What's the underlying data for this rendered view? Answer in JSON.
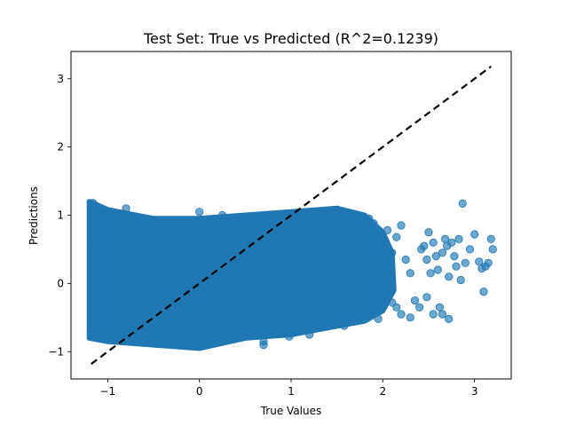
{
  "chart_data": {
    "type": "scatter",
    "title": "Test Set: True vs Predicted (R^2=0.1239)",
    "xlabel": "True Values",
    "ylabel": "Predictions",
    "xlim": [
      -1.4,
      3.4
    ],
    "ylim": [
      -1.4,
      3.4
    ],
    "xticks": [
      -1,
      0,
      1,
      2,
      3
    ],
    "yticks": [
      -1,
      0,
      1,
      2,
      3
    ],
    "xtick_labels": [
      "−1",
      "0",
      "1",
      "2",
      "3"
    ],
    "ytick_labels": [
      "−1",
      "0",
      "1",
      "2",
      "3"
    ],
    "grid": false,
    "legend": null,
    "colors": {
      "points": "#1f77b4",
      "reference_line": "#000000"
    },
    "reference_line": {
      "style": "dashed",
      "x": [
        -1.18,
        3.18
      ],
      "y": [
        -1.18,
        3.18
      ]
    },
    "series": [
      {
        "name": "",
        "description": "dense cloud of test predictions",
        "points": [
          [
            -1.17,
            0.55
          ],
          [
            -1.16,
            1.18
          ],
          [
            -1.1,
            -0.1
          ],
          [
            -1.05,
            1.05
          ],
          [
            -0.98,
            0.25
          ],
          [
            -0.9,
            -0.55
          ],
          [
            -0.8,
            1.1
          ],
          [
            -0.75,
            0.8
          ],
          [
            -0.7,
            -0.85
          ],
          [
            -0.6,
            0.35
          ],
          [
            -0.5,
            0.92
          ],
          [
            -0.45,
            -0.75
          ],
          [
            -0.3,
            0.1
          ],
          [
            -0.2,
            -0.8
          ],
          [
            -0.1,
            0.55
          ],
          [
            0.0,
            1.05
          ],
          [
            0.05,
            -0.9
          ],
          [
            0.1,
            0.78
          ],
          [
            0.2,
            -0.15
          ],
          [
            0.25,
            1.0
          ],
          [
            0.3,
            -0.7
          ],
          [
            0.4,
            0.3
          ],
          [
            0.5,
            0.95
          ],
          [
            0.6,
            -0.55
          ],
          [
            0.7,
            -0.85
          ],
          [
            0.8,
            0.45
          ],
          [
            0.9,
            -0.2
          ],
          [
            1.0,
            1.02
          ],
          [
            1.1,
            0.05
          ],
          [
            1.2,
            -0.75
          ],
          [
            1.3,
            0.9
          ],
          [
            1.35,
            -0.3
          ],
          [
            1.5,
            1.08
          ],
          [
            1.6,
            -0.55
          ],
          [
            1.7,
            0.6
          ],
          [
            1.75,
            -0.1
          ],
          [
            1.85,
            0.95
          ],
          [
            1.9,
            -0.4
          ],
          [
            2.0,
            0.6
          ],
          [
            2.05,
            -0.15
          ],
          [
            2.1,
            0.45
          ],
          [
            2.15,
            -0.35
          ],
          [
            2.2,
            0.85
          ],
          [
            2.25,
            0.35
          ],
          [
            2.3,
            0.15
          ],
          [
            2.35,
            -0.25
          ],
          [
            2.4,
            -0.35
          ],
          [
            2.42,
            0.5
          ],
          [
            2.45,
            0.55
          ],
          [
            2.48,
            0.35
          ],
          [
            2.5,
            0.75
          ],
          [
            2.52,
            0.15
          ],
          [
            2.55,
            0.6
          ],
          [
            2.58,
            0.4
          ],
          [
            2.6,
            0.2
          ],
          [
            2.62,
            -0.35
          ],
          [
            2.65,
            0.45
          ],
          [
            2.68,
            0.65
          ],
          [
            2.7,
            0.55
          ],
          [
            2.72,
            0.1
          ],
          [
            2.75,
            0.6
          ],
          [
            2.78,
            0.4
          ],
          [
            2.8,
            0.25
          ],
          [
            2.83,
            0.65
          ],
          [
            2.87,
            1.17
          ],
          [
            2.9,
            0.3
          ],
          [
            2.95,
            0.5
          ],
          [
            3.0,
            0.72
          ],
          [
            3.05,
            0.32
          ],
          [
            3.08,
            0.22
          ],
          [
            3.12,
            0.25
          ],
          [
            3.15,
            0.3
          ],
          [
            3.18,
            0.65
          ],
          [
            3.2,
            0.5
          ],
          [
            2.48,
            -0.2
          ],
          [
            2.55,
            -0.45
          ],
          [
            2.65,
            -0.45
          ],
          [
            2.72,
            -0.52
          ],
          [
            2.85,
            0.05
          ],
          [
            3.1,
            -0.12
          ],
          [
            2.3,
            -0.5
          ],
          [
            2.2,
            -0.45
          ],
          [
            2.15,
            0.68
          ],
          [
            2.1,
            -0.28
          ],
          [
            2.05,
            0.78
          ],
          [
            1.95,
            -0.52
          ],
          [
            1.9,
            0.88
          ],
          [
            1.58,
            -0.62
          ],
          [
            0.98,
            -0.78
          ],
          [
            0.7,
            -0.9
          ]
        ]
      }
    ]
  }
}
